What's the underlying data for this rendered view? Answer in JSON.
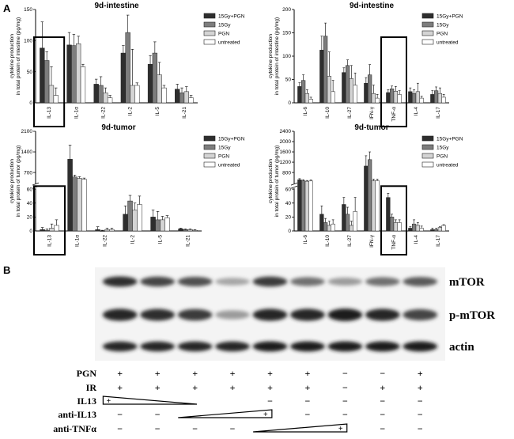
{
  "panel_a_label": "A",
  "panel_b_label": "B",
  "chart_data": [
    {
      "type": "bar",
      "title": "9d-intestine",
      "ylabel": "cytokine production\nin total protein of intestine (pg/mg)",
      "ylim": [
        0,
        150
      ],
      "yticks": [
        "0",
        "50",
        "100",
        "150"
      ],
      "legend_position": "top-right",
      "categories": [
        "IL-13",
        "IL-1α",
        "IL-22",
        "IL-2",
        "IL-5",
        "IL-21"
      ],
      "highlight_category": "IL-13",
      "series": [
        {
          "name": "15Gy+PGN",
          "values": [
            88,
            93,
            30,
            80,
            62,
            22
          ]
        },
        {
          "name": "15Gy",
          "values": [
            68,
            92,
            28,
            113,
            80,
            16
          ]
        },
        {
          "name": "PGN",
          "values": [
            28,
            95,
            16,
            28,
            45,
            18
          ]
        },
        {
          "name": "untreated",
          "values": [
            12,
            58,
            8,
            28,
            24,
            8
          ]
        }
      ],
      "errors": [
        [
          42,
          20,
          8,
          12,
          14,
          8
        ],
        [
          14,
          18,
          14,
          28,
          18,
          8
        ],
        [
          30,
          12,
          8,
          58,
          20,
          8
        ],
        [
          12,
          4,
          4,
          4,
          4,
          4
        ]
      ]
    },
    {
      "type": "bar",
      "title": "9d-intestine",
      "ylabel": "cytokine production\nin total protein of intestine (pg/mg)",
      "ylim": [
        0,
        200
      ],
      "yticks": [
        "0",
        "50",
        "100",
        "150",
        "200"
      ],
      "legend_position": "top-right",
      "categories": [
        "IL-6",
        "IL-10",
        "IL-27",
        "IFN-γ",
        "TNF-α",
        "IL-4",
        "IL-17"
      ],
      "highlight_category": "TNF-α",
      "series": [
        {
          "name": "15Gy+PGN",
          "values": [
            35,
            113,
            65,
            42,
            22,
            24,
            18
          ]
        },
        {
          "name": "15Gy",
          "values": [
            48,
            143,
            80,
            60,
            30,
            20,
            26
          ]
        },
        {
          "name": "PGN",
          "values": [
            20,
            57,
            52,
            20,
            25,
            24,
            20
          ]
        },
        {
          "name": "untreated",
          "values": [
            8,
            24,
            38,
            10,
            18,
            10,
            12
          ]
        }
      ],
      "errors": [
        [
          8,
          30,
          10,
          12,
          6,
          8,
          8
        ],
        [
          12,
          28,
          12,
          22,
          6,
          8,
          8
        ],
        [
          8,
          52,
          28,
          18,
          10,
          18,
          12
        ],
        [
          4,
          24,
          26,
          8,
          8,
          4,
          6
        ]
      ]
    },
    {
      "type": "bar",
      "title": "9d-tumor",
      "ylabel": "cytokine production\nin total protein of tumor (pg/mg)",
      "y_axis_break": true,
      "lower_ylim": [
        0,
        60
      ],
      "lower_yticks": [
        "0",
        "20",
        "40",
        "60"
      ],
      "upper_ylim": [
        350,
        2100
      ],
      "upper_yticks": [
        "700",
        "1400",
        "2100"
      ],
      "legend_position": "top-right",
      "categories": [
        "IL-13",
        "IL-1α",
        "IL-22",
        "IL-2",
        "IL-5",
        "IL-21"
      ],
      "highlight_category": "IL-13",
      "series": [
        {
          "name": "15Gy+PGN",
          "values": [
            2,
            1150,
            2,
            24,
            20,
            3
          ]
        },
        {
          "name": "15Gy",
          "values": [
            1,
            550,
            0,
            43,
            16,
            2
          ]
        },
        {
          "name": "PGN",
          "values": [
            4,
            500,
            2,
            30,
            16,
            2
          ]
        },
        {
          "name": "untreated",
          "values": [
            8,
            470,
            2,
            38,
            19,
            1
          ]
        }
      ],
      "errors": [
        [
          3,
          480,
          4,
          12,
          10,
          1
        ],
        [
          2,
          60,
          1,
          8,
          12,
          1
        ],
        [
          6,
          60,
          2,
          10,
          5,
          1
        ],
        [
          8,
          40,
          2,
          12,
          3,
          1
        ]
      ]
    },
    {
      "type": "bar",
      "title": "9d-tumor",
      "ylabel": "cytokine production\nin total protein of tumor (pg/mg)",
      "y_axis_break": true,
      "lower_ylim": [
        0,
        60
      ],
      "lower_yticks": [
        "0",
        "20",
        "40",
        "60"
      ],
      "upper_ylim": [
        400,
        2400
      ],
      "upper_yticks": [
        "800",
        "1200",
        "1600",
        "2000",
        "2400"
      ],
      "legend_position": "top-right",
      "categories": [
        "IL-6",
        "IL-10",
        "IL-27",
        "IFN-γ",
        "TNF-α",
        "IL-4",
        "IL-17"
      ],
      "highlight_category": "TNF-α",
      "series": [
        {
          "name": "15Gy+PGN",
          "values": [
            520,
            24,
            38,
            1050,
            48,
            4,
            2
          ]
        },
        {
          "name": "15Gy",
          "values": [
            480,
            12,
            24,
            1300,
            20,
            10,
            2
          ]
        },
        {
          "name": "PGN",
          "values": [
            460,
            8,
            8,
            480,
            12,
            8,
            5
          ]
        },
        {
          "name": "untreated",
          "values": [
            470,
            10,
            28,
            480,
            12,
            4,
            8
          ]
        }
      ],
      "errors": [
        [
          40,
          12,
          10,
          400,
          6,
          2,
          2
        ],
        [
          40,
          6,
          10,
          300,
          4,
          6,
          2
        ],
        [
          30,
          6,
          6,
          60,
          4,
          4,
          1
        ],
        [
          40,
          6,
          20,
          60,
          4,
          3,
          1
        ]
      ]
    }
  ],
  "blot": {
    "bands": [
      "mTOR",
      "p-mTOR",
      "actin"
    ],
    "lane_count": 9,
    "mtor_intensity": [
      0.85,
      0.75,
      0.7,
      0.3,
      0.8,
      0.55,
      0.35,
      0.55,
      0.65
    ],
    "pmtor_intensity": [
      0.9,
      0.85,
      0.8,
      0.35,
      0.9,
      0.9,
      0.95,
      0.9,
      0.75
    ],
    "actin_intensity": [
      0.9,
      0.9,
      0.9,
      0.9,
      0.95,
      0.95,
      0.95,
      0.95,
      0.95
    ],
    "treatments": [
      {
        "label": "PGN",
        "signs": [
          "+",
          "+",
          "+",
          "+",
          "+",
          "+",
          "−",
          "−",
          "+"
        ]
      },
      {
        "label": "IR",
        "signs": [
          "+",
          "+",
          "+",
          "+",
          "+",
          "+",
          "−",
          "+",
          "+"
        ]
      },
      {
        "label": "IL13",
        "signs": [
          "",
          "",
          "",
          "",
          "−",
          "−",
          "−",
          "−",
          "−"
        ],
        "gradient_mark": "+",
        "gradient_lanes": [
          0,
          2
        ]
      },
      {
        "label": "anti-IL13",
        "signs": [
          "−",
          "−",
          "",
          "",
          "",
          "−",
          "−",
          "−",
          "−"
        ],
        "gradient_mark": "+",
        "gradient_lanes": [
          2,
          4
        ]
      },
      {
        "label": "anti-TNFα",
        "signs": [
          "−",
          "−",
          "−",
          "−",
          "",
          "",
          "",
          "−",
          "−"
        ],
        "gradient_mark": "+",
        "gradient_lanes": [
          4,
          6
        ]
      }
    ]
  },
  "colors": {
    "series": [
      "#2e2e2e",
      "#7d7d7d",
      "#d4d4d4",
      "#ffffff"
    ]
  }
}
